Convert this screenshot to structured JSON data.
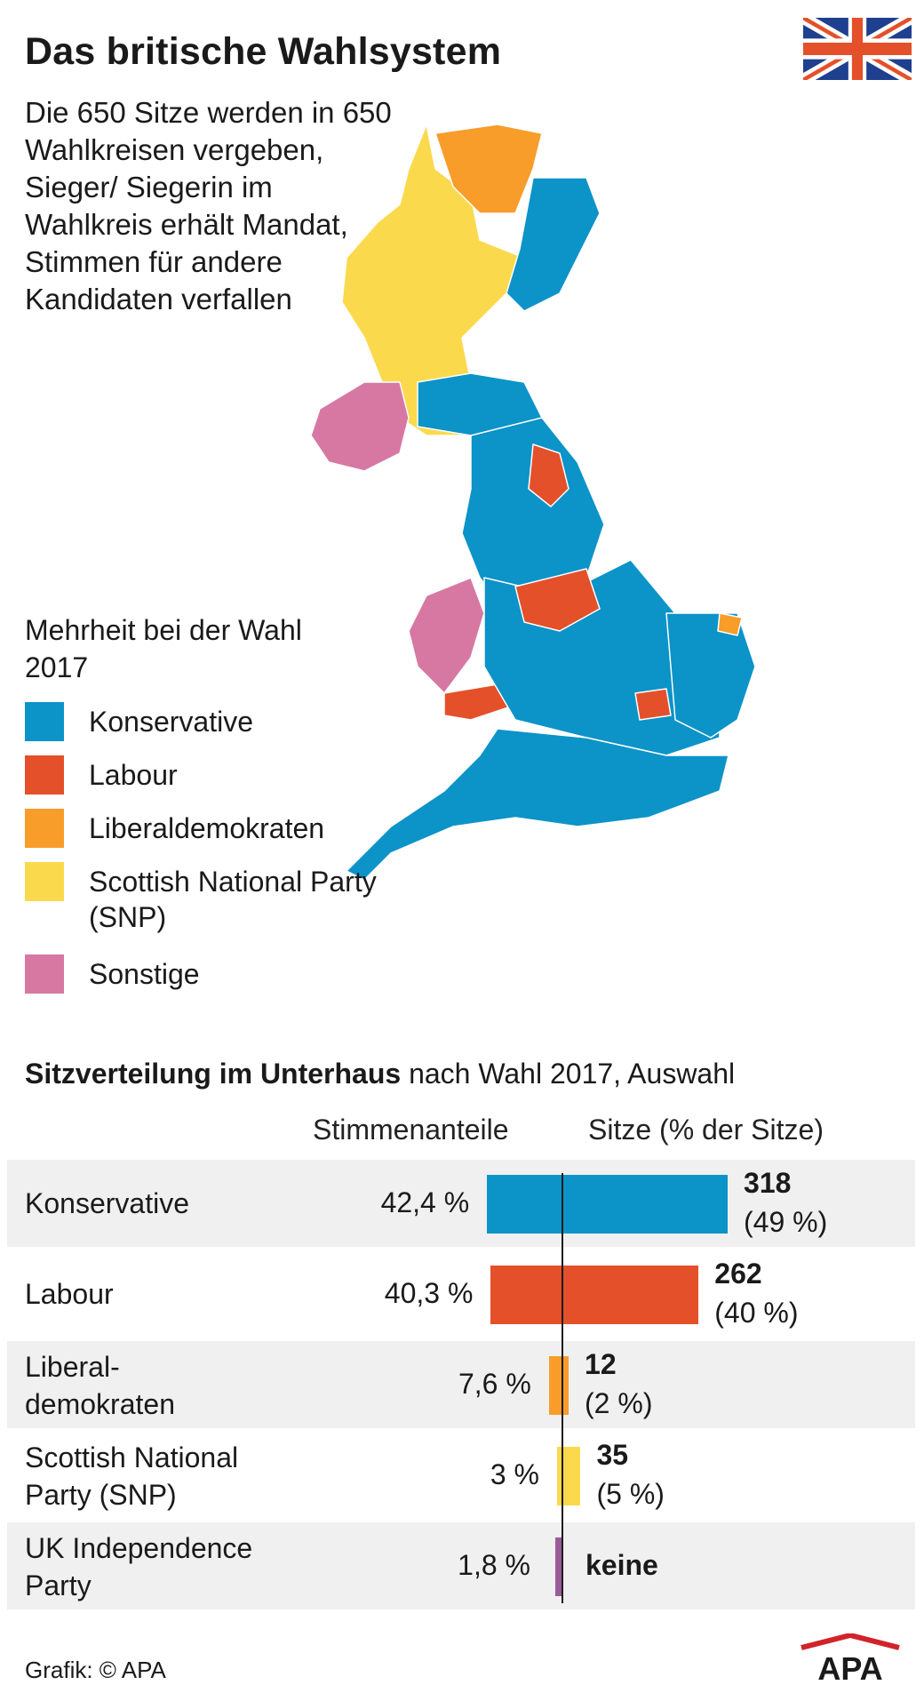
{
  "title": "Das britische Wahlsystem",
  "intro": "Die 650 Sitze werden in 650 Wahlkreisen vergeben, Sieger/ Siegerin im Wahlkreis erhält Mandat, Stimmen für andere Kandidaten verfallen",
  "legend": {
    "title": "Mehrheit bei der Wahl 2017",
    "items": [
      {
        "label": "Konservative",
        "color": "#0c93c8"
      },
      {
        "label": "Labour",
        "color": "#e4502a"
      },
      {
        "label": "Liberaldemokraten",
        "color": "#f89c2a"
      },
      {
        "label": "Scottish National Party (SNP)",
        "color": "#fbd94d"
      },
      {
        "label": "Sonstige",
        "color": "#d778a3"
      }
    ]
  },
  "map_colors": {
    "sea": "#ffffff",
    "border": "#ffffff"
  },
  "chart": {
    "subtitle_bold": "Sitzverteilung im Unterhaus",
    "subtitle_rest": "nach Wahl 2017, Auswahl",
    "col_votes": "Stimmenanteile",
    "col_seats": "Sitze (% der Sitze)"
  },
  "chart_data": {
    "type": "bar",
    "categories": [
      "Konservative",
      "Labour",
      "Liberal-demokraten",
      "Scottish National Party (SNP)",
      "UK Independence Party"
    ],
    "series": [
      {
        "values": [
          42.4,
          40.3,
          7.6,
          3,
          1.8
        ]
      },
      {
        "values": [
          318,
          262,
          12,
          35,
          0
        ]
      }
    ],
    "vote_labels": [
      "42,4 %",
      "40,3 %",
      "7,6 %",
      "3 %",
      "1,8 %"
    ],
    "seat_labels": [
      "318",
      "262",
      "12",
      "35",
      "keine"
    ],
    "seat_pct_labels": [
      "(49 %)",
      "(40 %)",
      "(2 %)",
      "(5 %)",
      ""
    ],
    "colors": [
      "#0c93c8",
      "#e4502a",
      "#f89c2a",
      "#fbd94d",
      "#9a5a97"
    ]
  },
  "credit": "Grafik: © APA",
  "logo_text": "APA"
}
